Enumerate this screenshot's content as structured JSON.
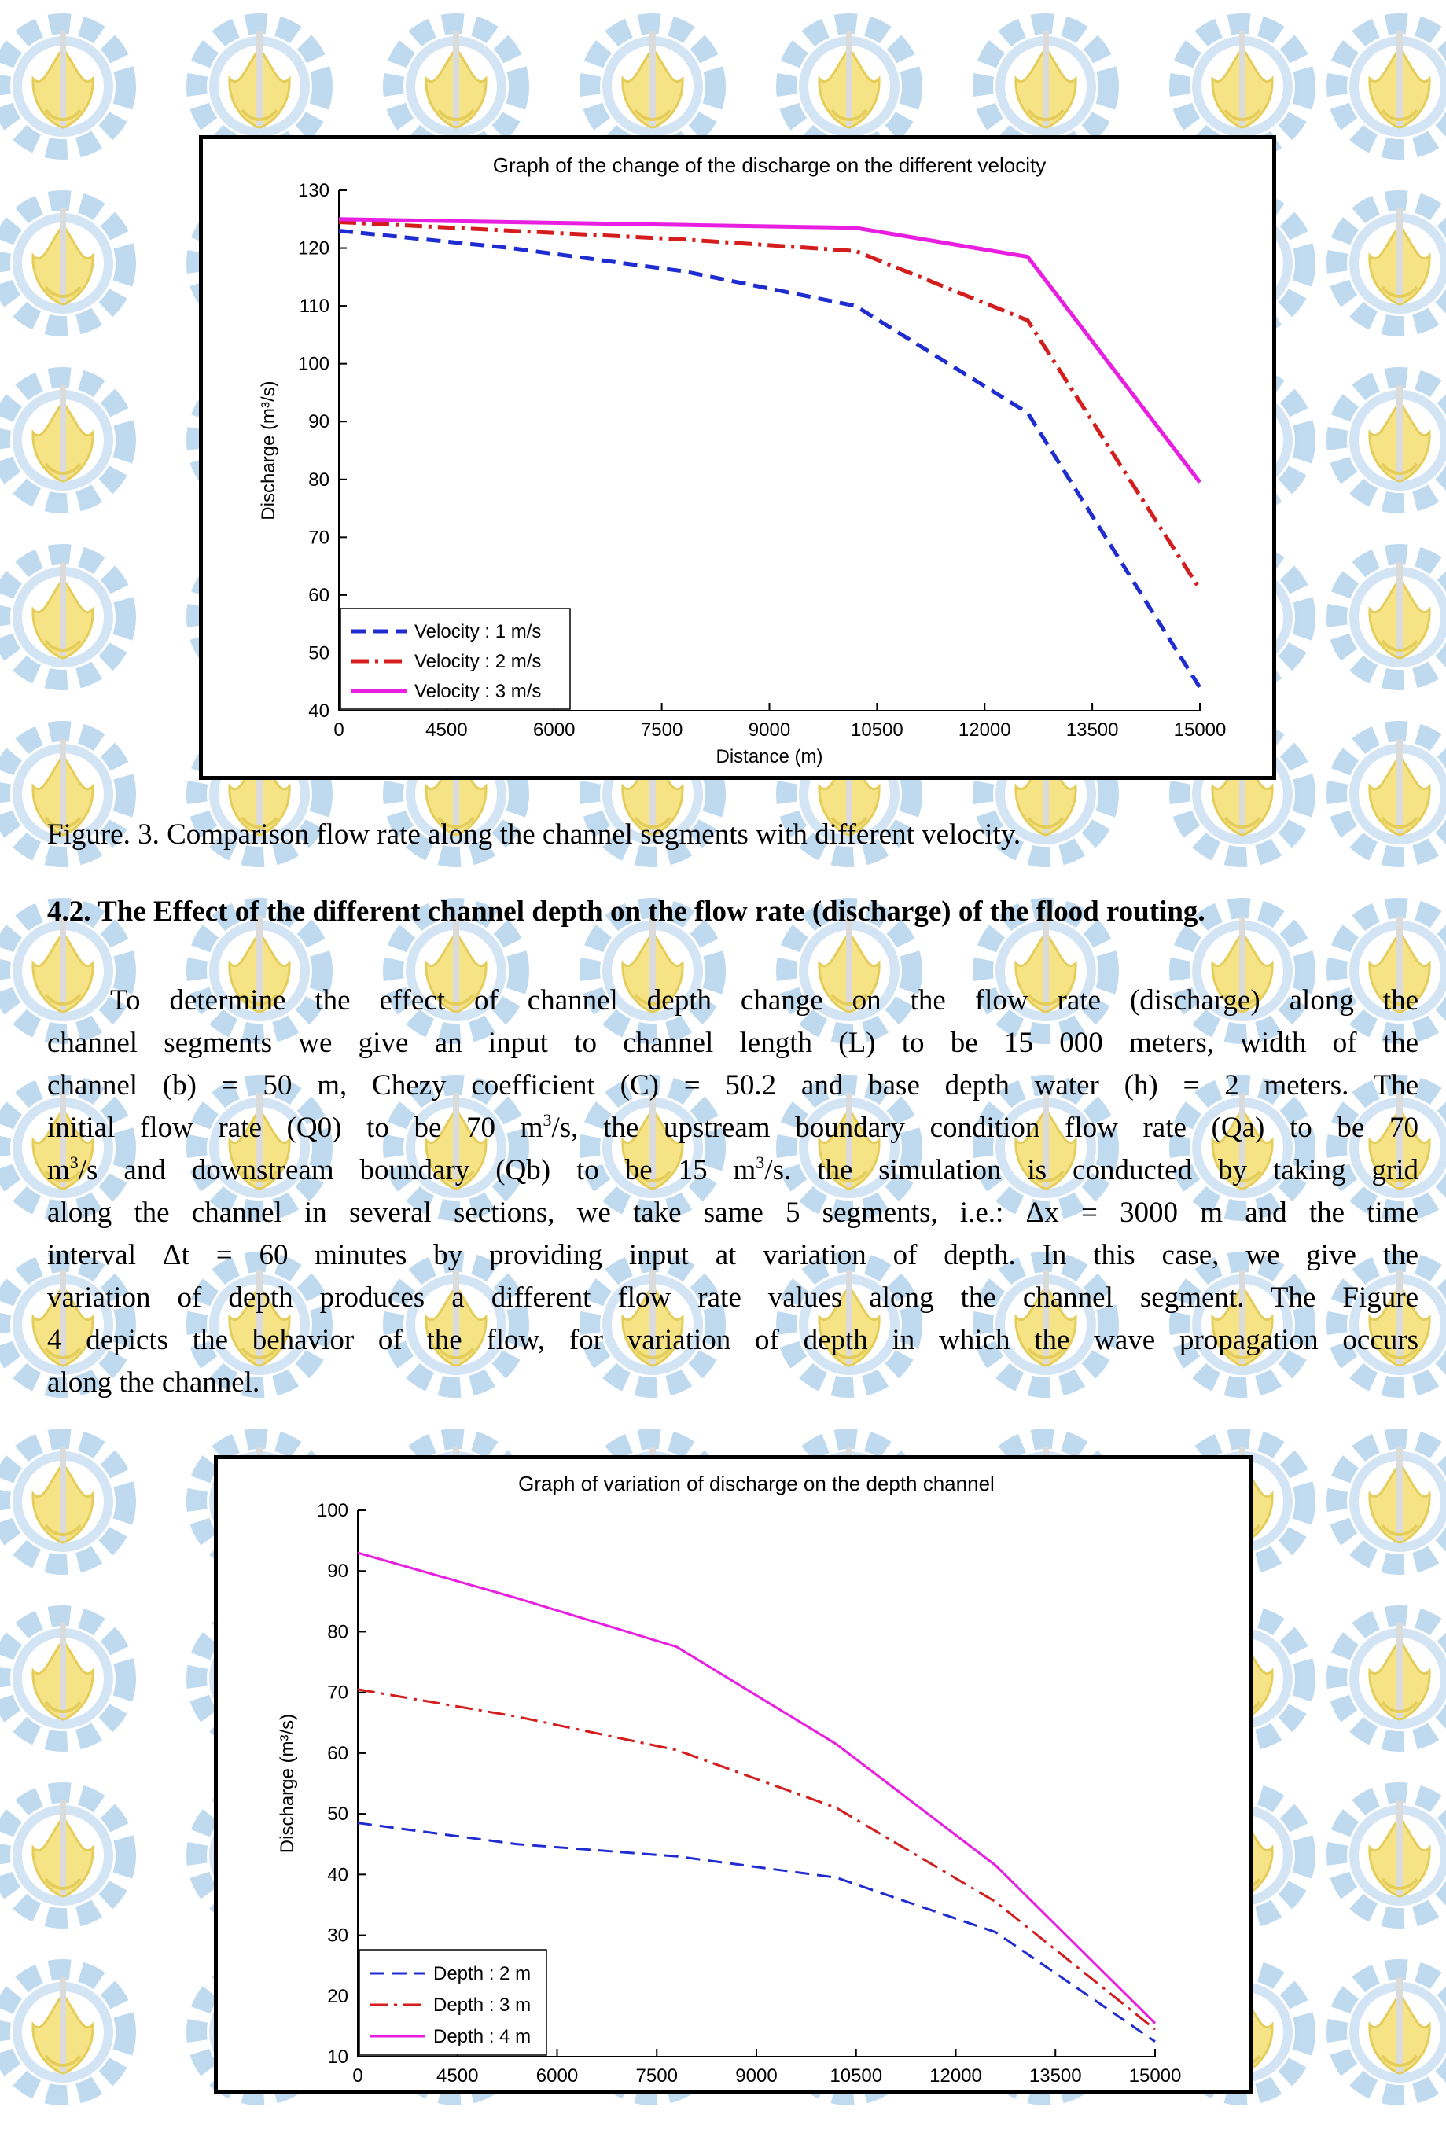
{
  "colors": {
    "watermark_blue": "#b9d6ee",
    "watermark_yellow": "#f4e17a",
    "series_blue": "#1f2ccf",
    "series_red": "#d41e1e",
    "series_magenta": "#e81ee0"
  },
  "watermark": {
    "icon": "its-logo-pattern"
  },
  "figure3": {
    "chart_data": {
      "type": "line",
      "title": "Graph of the change of the discharge on the different velocity",
      "xlabel": "Distance (m)",
      "ylabel": "Discharge (m³/s)",
      "x_ticks": [
        "0",
        "4500",
        "6000",
        "7500",
        "9000",
        "10500",
        "12000",
        "13500",
        "15000"
      ],
      "y_ticks": [
        40,
        50,
        60,
        70,
        80,
        90,
        100,
        110,
        120,
        130
      ],
      "ylim": [
        40,
        130
      ],
      "x_points": [
        "0",
        "3000",
        "6000",
        "9000",
        "12000",
        "15000"
      ],
      "legend_position": "bottom-left",
      "series": [
        {
          "name": "Velocity : 1 m/s",
          "style": "dashed",
          "color": "#1f2ccf",
          "values": [
            123,
            120,
            116,
            110,
            91.5,
            44
          ]
        },
        {
          "name": "Velocity : 2 m/s",
          "style": "dash-dot",
          "color": "#d41e1e",
          "values": [
            124.5,
            123,
            121.5,
            119.5,
            107.5,
            61
          ]
        },
        {
          "name": "Velocity : 3 m/s",
          "style": "solid",
          "color": "#e81ee0",
          "values": [
            125,
            124.5,
            124,
            123.5,
            118.5,
            79.5
          ]
        }
      ]
    }
  },
  "caption3": "Figure. 3. Comparison flow rate along the channel segments with different velocity.",
  "section": {
    "heading": "4.2. The Effect of the different channel depth on the flow rate (discharge) of the flood routing.",
    "lines": [
      "To determine the effect of channel depth change on the flow rate (discharge) along the",
      "channel segments we give an input to channel length (L) to be 15 000 meters, width of the",
      "channel (b) = 50 m, Chezy coefficient (C) = 50.2 and base depth water (h) = 2 meters. The",
      "initial flow rate (Q0) to be 70 m",
      "3",
      "/s, the upstream boundary condition flow rate (Qa) to be 70",
      "m",
      "3",
      "/s and downstream boundary (Qb) to be 15 m",
      "3",
      "/s. the simulation is conducted by taking grid",
      "along the channel in several sections, we take same 5 segments, i.e.: Δx = 3000 m and the time",
      "interval Δt = 60 minutes by providing input at variation of depth. In this case, we give the",
      "variation of depth produces a different flow rate values along the channel segment. The Figure",
      "4 depicts the behavior of the flow, for variation of depth in which the wave propagation occurs",
      "along the channel."
    ]
  },
  "figure4": {
    "chart_data": {
      "type": "line",
      "title": "Graph of variation of discharge on the depth channel",
      "xlabel": "Distance (m)",
      "ylabel": "Discharge (m³/s)",
      "x_ticks": [
        "0",
        "4500",
        "6000",
        "7500",
        "9000",
        "10500",
        "12000",
        "13500",
        "15000"
      ],
      "y_ticks": [
        10,
        20,
        30,
        40,
        50,
        60,
        70,
        80,
        90,
        100
      ],
      "ylim": [
        10,
        100
      ],
      "x_points": [
        "0",
        "3000",
        "6000",
        "9000",
        "12000",
        "15000"
      ],
      "legend_position": "bottom-left",
      "series": [
        {
          "name": "Depth : 2 m",
          "style": "dashed",
          "color": "#1f2ccf",
          "values": [
            48.5,
            45,
            43,
            39.5,
            30.5,
            12.5
          ]
        },
        {
          "name": "Depth : 3 m",
          "style": "dash-dot",
          "color": "#d41e1e",
          "values": [
            70.5,
            66,
            60.5,
            51,
            35.5,
            14.5
          ]
        },
        {
          "name": "Depth : 4 m",
          "style": "solid",
          "color": "#e81ee0",
          "values": [
            93,
            85.5,
            77.5,
            61.5,
            41.5,
            15.5
          ]
        }
      ]
    }
  }
}
